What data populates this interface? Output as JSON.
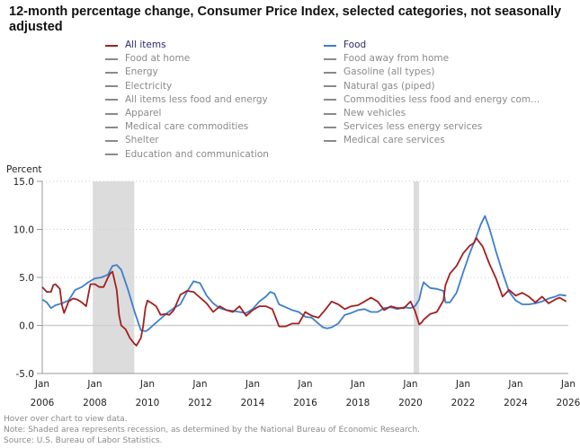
{
  "title": "12-month percentage change, Consumer Price Index, selected categories, not seasonally adjusted",
  "legend": {
    "left": [
      {
        "label": "All items",
        "color": "#a31f1f",
        "active": true
      },
      {
        "label": "Food at home",
        "color": "#8a8a8a",
        "active": false
      },
      {
        "label": "Energy",
        "color": "#8a8a8a",
        "active": false
      },
      {
        "label": "Electricity",
        "color": "#8a8a8a",
        "active": false
      },
      {
        "label": "All items less food and energy",
        "color": "#8a8a8a",
        "active": false
      },
      {
        "label": "Apparel",
        "color": "#8a8a8a",
        "active": false
      },
      {
        "label": "Medical care commodities",
        "color": "#8a8a8a",
        "active": false
      },
      {
        "label": "Shelter",
        "color": "#8a8a8a",
        "active": false
      },
      {
        "label": "Education and communication",
        "color": "#8a8a8a",
        "active": false
      }
    ],
    "right": [
      {
        "label": "Food",
        "color": "#3d7fcc",
        "active": true
      },
      {
        "label": "Food away from home",
        "color": "#8a8a8a",
        "active": false
      },
      {
        "label": "Gasoline (all types)",
        "color": "#8a8a8a",
        "active": false
      },
      {
        "label": "Natural gas (piped)",
        "color": "#8a8a8a",
        "active": false
      },
      {
        "label": "Commodities less food and energy com...",
        "color": "#8a8a8a",
        "active": false
      },
      {
        "label": "New vehicles",
        "color": "#8a8a8a",
        "active": false
      },
      {
        "label": "Services less energy services",
        "color": "#8a8a8a",
        "active": false
      },
      {
        "label": "Medical care services",
        "color": "#8a8a8a",
        "active": false
      }
    ]
  },
  "notes": {
    "hover": "Hover over chart to view data.",
    "note": "Note: Shaded area represents recession, as determined by the National Bureau of Economic Research.",
    "source": "Source: U.S. Bureau of Labor Statistics."
  },
  "chart_data": {
    "type": "line",
    "title": "12-month percentage change, Consumer Price Index, selected categories, not seasonally adjusted",
    "ylabel": "Percent",
    "xlabel": "",
    "ylim": [
      -5.0,
      15.0
    ],
    "yticks": [
      "15.0",
      "10.0",
      "5.0",
      "0.0",
      "-5.0"
    ],
    "ytick_values": [
      15,
      10,
      5,
      0,
      -5
    ],
    "xlim": [
      2006.0,
      2026.0
    ],
    "xticks": [
      {
        "month": "Jan",
        "year": "2006",
        "value": 2006
      },
      {
        "month": "Jan",
        "year": "2008",
        "value": 2008
      },
      {
        "month": "Jan",
        "year": "2010",
        "value": 2010
      },
      {
        "month": "Jan",
        "year": "2012",
        "value": 2012
      },
      {
        "month": "Jan",
        "year": "2014",
        "value": 2014
      },
      {
        "month": "Jan",
        "year": "2016",
        "value": 2016
      },
      {
        "month": "Jan",
        "year": "2018",
        "value": 2018
      },
      {
        "month": "Jan",
        "year": "2020",
        "value": 2020
      },
      {
        "month": "Jan",
        "year": "2022",
        "value": 2022
      },
      {
        "month": "Jan",
        "year": "2024",
        "value": 2024
      },
      {
        "month": "Jan",
        "year": "2026",
        "value": 2026
      }
    ],
    "grid": "horizontal-dotted",
    "recessions": [
      [
        2007.92,
        2009.5
      ],
      [
        2020.12,
        2020.33
      ]
    ],
    "series": [
      {
        "name": "All items",
        "color": "#a31f1f",
        "x": [
          2006.0,
          2006.17,
          2006.33,
          2006.42,
          2006.5,
          2006.67,
          2006.75,
          2006.83,
          2007.0,
          2007.17,
          2007.33,
          2007.5,
          2007.67,
          2007.83,
          2008.0,
          2008.17,
          2008.33,
          2008.5,
          2008.58,
          2008.67,
          2008.83,
          2008.92,
          2009.0,
          2009.17,
          2009.33,
          2009.5,
          2009.58,
          2009.75,
          2009.83,
          2009.92,
          2010.0,
          2010.17,
          2010.33,
          2010.5,
          2010.67,
          2010.83,
          2011.0,
          2011.25,
          2011.5,
          2011.75,
          2012.0,
          2012.25,
          2012.5,
          2012.75,
          2013.0,
          2013.25,
          2013.5,
          2013.75,
          2014.0,
          2014.25,
          2014.5,
          2014.75,
          2015.0,
          2015.25,
          2015.5,
          2015.75,
          2016.0,
          2016.25,
          2016.5,
          2016.75,
          2017.0,
          2017.25,
          2017.5,
          2017.75,
          2018.0,
          2018.25,
          2018.5,
          2018.75,
          2019.0,
          2019.25,
          2019.5,
          2019.75,
          2020.0,
          2020.17,
          2020.33,
          2020.42,
          2020.5,
          2020.75,
          2021.0,
          2021.25,
          2021.33,
          2021.5,
          2021.75,
          2022.0,
          2022.25,
          2022.42,
          2022.5,
          2022.75,
          2023.0,
          2023.25,
          2023.5,
          2023.75,
          2024.0,
          2024.25,
          2024.5,
          2024.75,
          2025.0,
          2025.25,
          2025.5,
          2025.67,
          2025.92
        ],
        "values": [
          4.0,
          3.5,
          3.5,
          4.2,
          4.3,
          3.8,
          2.1,
          1.3,
          2.5,
          2.8,
          2.7,
          2.4,
          2.0,
          4.3,
          4.3,
          4.0,
          4.0,
          5.0,
          5.4,
          5.6,
          3.7,
          1.1,
          0.0,
          -0.4,
          -1.3,
          -1.9,
          -2.1,
          -1.3,
          -0.2,
          1.8,
          2.6,
          2.3,
          2.0,
          1.1,
          1.2,
          1.1,
          1.6,
          3.2,
          3.6,
          3.5,
          2.9,
          2.3,
          1.4,
          2.0,
          1.6,
          1.4,
          2.0,
          1.0,
          1.6,
          2.0,
          2.0,
          1.7,
          -0.1,
          -0.1,
          0.2,
          0.2,
          1.4,
          1.0,
          0.8,
          1.6,
          2.5,
          2.2,
          1.7,
          2.0,
          2.1,
          2.5,
          2.9,
          2.5,
          1.6,
          2.0,
          1.8,
          1.8,
          2.5,
          1.5,
          0.1,
          0.3,
          0.6,
          1.2,
          1.4,
          2.6,
          4.2,
          5.4,
          6.2,
          7.5,
          8.3,
          8.6,
          9.1,
          8.2,
          6.4,
          4.9,
          3.0,
          3.7,
          3.1,
          3.4,
          3.0,
          2.4,
          3.0,
          2.3,
          2.7,
          2.9,
          2.5
        ]
      },
      {
        "name": "Food",
        "color": "#3d7fcc",
        "x": [
          2006.0,
          2006.17,
          2006.33,
          2006.5,
          2006.75,
          2007.0,
          2007.25,
          2007.5,
          2007.75,
          2008.0,
          2008.25,
          2008.5,
          2008.67,
          2008.83,
          2009.0,
          2009.25,
          2009.5,
          2009.75,
          2009.92,
          2010.0,
          2010.25,
          2010.5,
          2010.75,
          2011.0,
          2011.25,
          2011.5,
          2011.75,
          2012.0,
          2012.25,
          2012.5,
          2012.75,
          2013.0,
          2013.25,
          2013.5,
          2013.75,
          2014.0,
          2014.25,
          2014.5,
          2014.67,
          2014.83,
          2015.0,
          2015.25,
          2015.5,
          2015.75,
          2016.0,
          2016.25,
          2016.5,
          2016.67,
          2016.83,
          2017.0,
          2017.25,
          2017.5,
          2017.75,
          2018.0,
          2018.25,
          2018.5,
          2018.75,
          2019.0,
          2019.25,
          2019.5,
          2019.75,
          2020.0,
          2020.17,
          2020.33,
          2020.42,
          2020.5,
          2020.75,
          2021.0,
          2021.25,
          2021.33,
          2021.5,
          2021.75,
          2022.0,
          2022.25,
          2022.5,
          2022.67,
          2022.83,
          2023.0,
          2023.25,
          2023.5,
          2023.75,
          2024.0,
          2024.25,
          2024.5,
          2024.75,
          2025.0,
          2025.25,
          2025.5,
          2025.67,
          2025.92
        ],
        "values": [
          2.7,
          2.4,
          1.8,
          2.1,
          2.3,
          2.6,
          3.7,
          4.0,
          4.5,
          4.9,
          5.0,
          5.3,
          6.2,
          6.3,
          5.8,
          3.8,
          1.5,
          -0.5,
          -0.6,
          -0.5,
          0.1,
          0.7,
          1.3,
          1.8,
          2.2,
          3.5,
          4.6,
          4.4,
          3.1,
          2.3,
          1.8,
          1.6,
          1.5,
          1.4,
          1.3,
          1.7,
          2.5,
          3.0,
          3.5,
          3.3,
          2.2,
          1.9,
          1.6,
          1.4,
          0.9,
          0.8,
          0.2,
          -0.2,
          -0.3,
          -0.2,
          0.2,
          1.1,
          1.3,
          1.6,
          1.7,
          1.4,
          1.4,
          1.8,
          1.9,
          1.7,
          1.9,
          1.8,
          2.0,
          2.7,
          3.8,
          4.5,
          3.9,
          3.8,
          3.6,
          2.4,
          2.4,
          3.4,
          5.5,
          7.5,
          9.2,
          10.5,
          11.4,
          10.1,
          7.7,
          5.5,
          3.5,
          2.6,
          2.2,
          2.2,
          2.3,
          2.5,
          2.8,
          3.0,
          3.2,
          3.1
        ]
      }
    ]
  }
}
